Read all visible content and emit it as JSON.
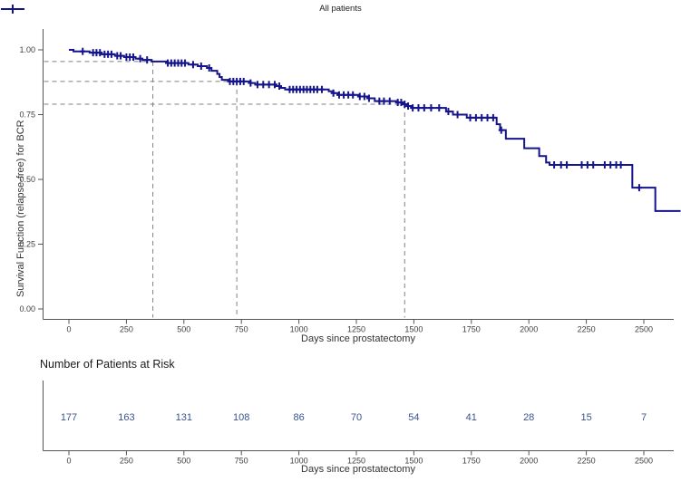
{
  "legend": {
    "label": "All patients",
    "marker": "censor-plus-line"
  },
  "axes": {
    "y_label": "Survival Function (relapse-free) for BCR",
    "x_label": "Days since prostatectomy"
  },
  "risk_table": {
    "title": "Number of Patients at Risk",
    "x_label": "Days since prostatectomy"
  },
  "colors": {
    "curve": "#14148c",
    "risk_numbers": "#3a5390",
    "axis_line": "#555555",
    "tick_text": "#404040",
    "reference_line": "#808080"
  },
  "chart_data": {
    "type": "line",
    "subtype": "kaplan-meier-step",
    "title": "",
    "xlabel": "Days since prostatectomy",
    "ylabel": "Survival Function (relapse-free) for BCR",
    "xlim": [
      0,
      2660
    ],
    "ylim": [
      0.0,
      1.0
    ],
    "x_ticks": [
      0,
      250,
      500,
      750,
      1000,
      1250,
      1500,
      1750,
      2000,
      2250,
      2500
    ],
    "y_ticks": [
      0.0,
      0.25,
      0.5,
      0.75,
      1.0
    ],
    "y_tick_labels": [
      "0.00",
      "0.25",
      "0.50",
      "0.75",
      "1.00"
    ],
    "grid": false,
    "legend_position": "top-center",
    "series": [
      {
        "name": "All patients",
        "start": [
          0,
          1.0
        ],
        "steps": [
          [
            20,
            0.994
          ],
          [
            90,
            0.989
          ],
          [
            140,
            0.983
          ],
          [
            200,
            0.977
          ],
          [
            240,
            0.972
          ],
          [
            290,
            0.966
          ],
          [
            320,
            0.961
          ],
          [
            360,
            0.955
          ],
          [
            430,
            0.949
          ],
          [
            520,
            0.943
          ],
          [
            560,
            0.937
          ],
          [
            600,
            0.93
          ],
          [
            620,
            0.919
          ],
          [
            645,
            0.907
          ],
          [
            655,
            0.895
          ],
          [
            665,
            0.884
          ],
          [
            700,
            0.878
          ],
          [
            790,
            0.872
          ],
          [
            810,
            0.866
          ],
          [
            900,
            0.86
          ],
          [
            920,
            0.853
          ],
          [
            940,
            0.847
          ],
          [
            1130,
            0.84
          ],
          [
            1150,
            0.833
          ],
          [
            1170,
            0.826
          ],
          [
            1260,
            0.82
          ],
          [
            1300,
            0.813
          ],
          [
            1330,
            0.802
          ],
          [
            1430,
            0.797
          ],
          [
            1450,
            0.79
          ],
          [
            1470,
            0.783
          ],
          [
            1490,
            0.776
          ],
          [
            1640,
            0.762
          ],
          [
            1670,
            0.75
          ],
          [
            1730,
            0.738
          ],
          [
            1860,
            0.713
          ],
          [
            1875,
            0.69
          ],
          [
            1900,
            0.657
          ],
          [
            1980,
            0.62
          ],
          [
            2045,
            0.59
          ],
          [
            2075,
            0.565
          ],
          [
            2090,
            0.556
          ],
          [
            2450,
            0.468
          ],
          [
            2550,
            0.378
          ]
        ],
        "end_time": 2660,
        "censor_times": [
          60,
          105,
          120,
          135,
          155,
          170,
          185,
          210,
          225,
          250,
          265,
          280,
          310,
          340,
          430,
          445,
          460,
          475,
          490,
          505,
          540,
          575,
          610,
          700,
          715,
          730,
          745,
          760,
          790,
          820,
          845,
          870,
          895,
          915,
          960,
          975,
          990,
          1005,
          1020,
          1035,
          1050,
          1065,
          1080,
          1100,
          1150,
          1175,
          1195,
          1215,
          1235,
          1265,
          1285,
          1305,
          1350,
          1370,
          1395,
          1430,
          1445,
          1460,
          1475,
          1495,
          1520,
          1545,
          1575,
          1610,
          1650,
          1690,
          1745,
          1770,
          1795,
          1820,
          1845,
          1880,
          2110,
          2140,
          2165,
          2230,
          2255,
          2280,
          2330,
          2355,
          2380,
          2400,
          2480
        ]
      }
    ],
    "reference_lines": [
      {
        "day": 365,
        "survival": 0.955
      },
      {
        "day": 730,
        "survival": 0.878
      },
      {
        "day": 1460,
        "survival": 0.79
      }
    ],
    "at_risk": {
      "title": "Number of Patients at Risk",
      "times": [
        0,
        250,
        500,
        750,
        1000,
        1250,
        1500,
        1750,
        2000,
        2250,
        2500
      ],
      "counts": [
        177,
        163,
        131,
        108,
        86,
        70,
        54,
        41,
        28,
        15,
        7
      ]
    }
  }
}
